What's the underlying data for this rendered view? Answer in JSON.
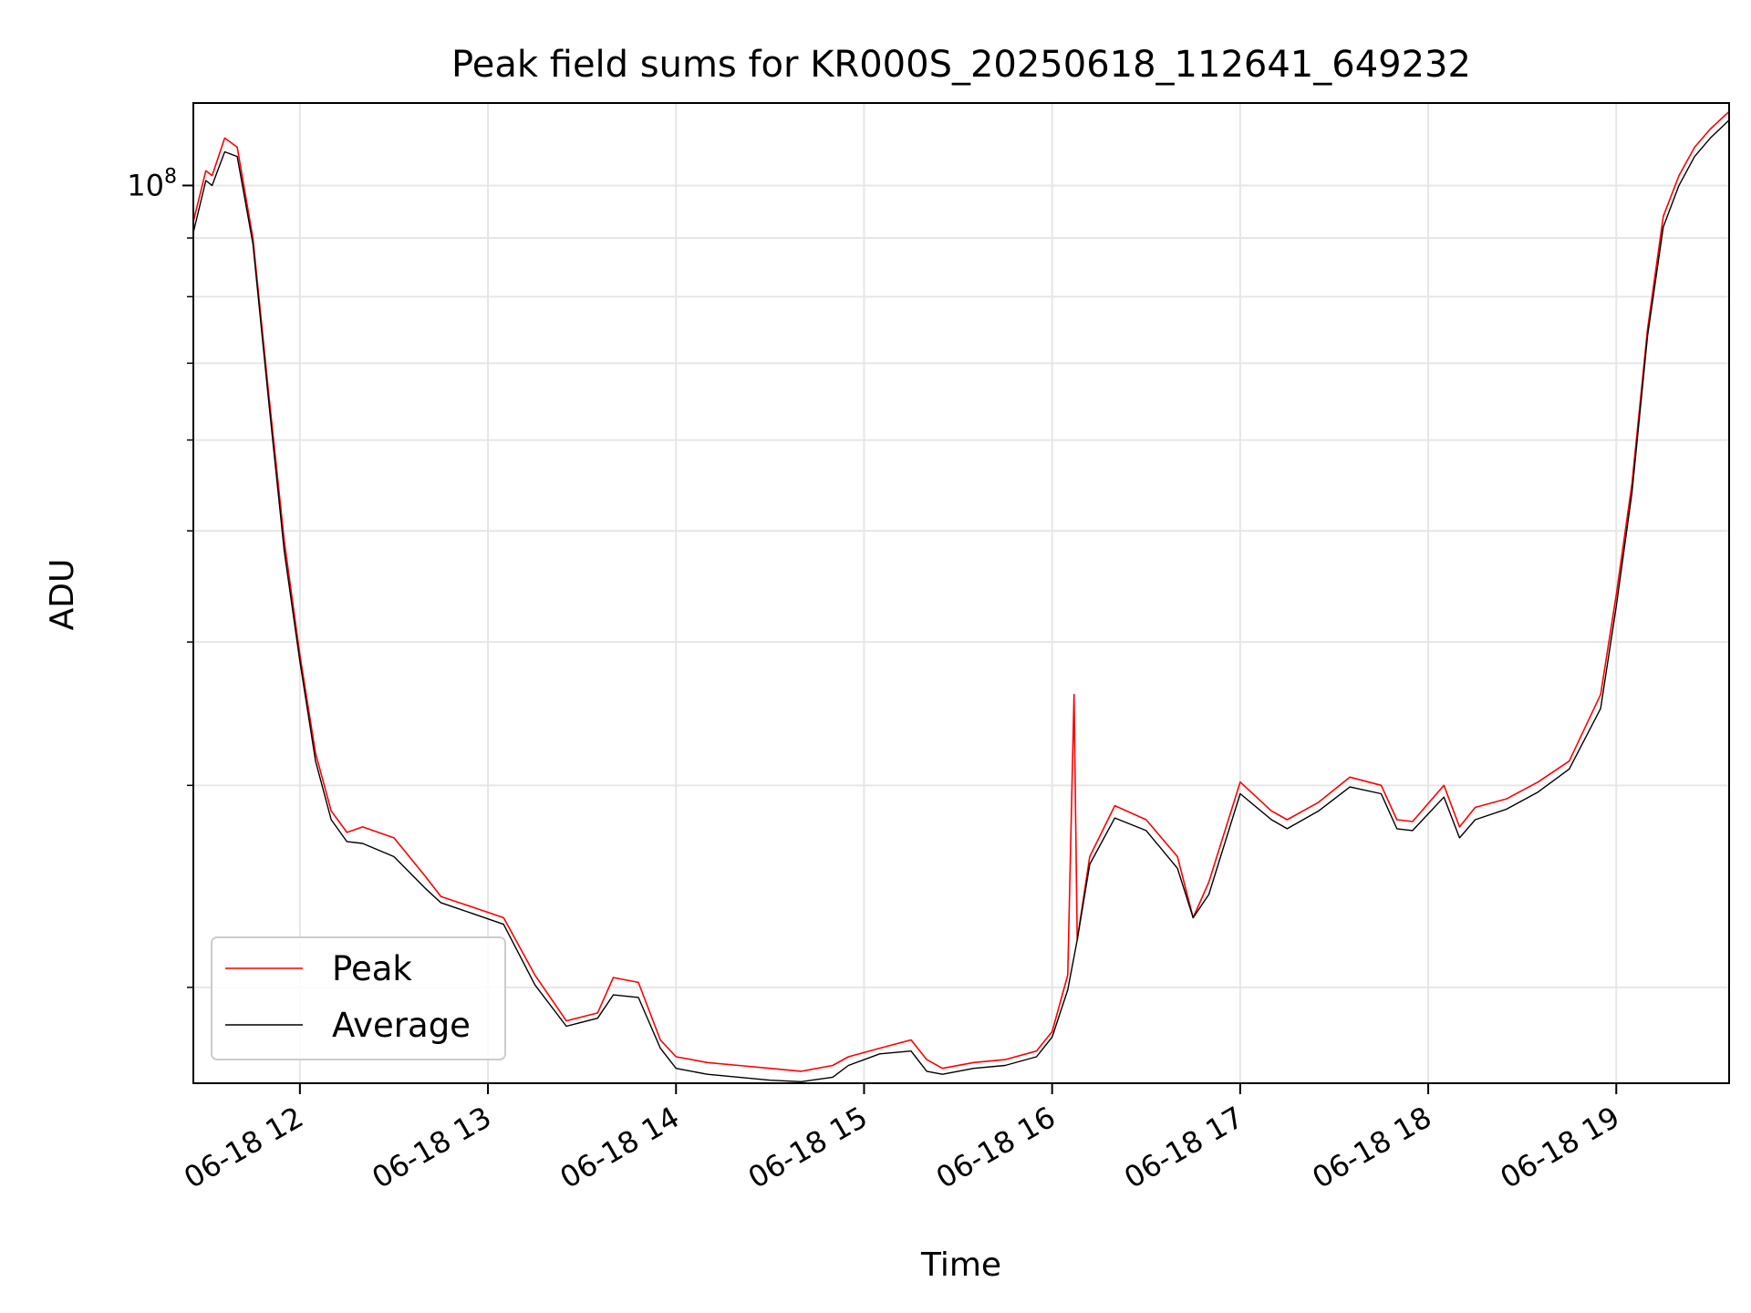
{
  "chart_data": {
    "type": "line",
    "title": "Peak field sums for KR000S_20250618_112641_649232",
    "xlabel": "Time",
    "ylabel": "ADU",
    "yscale": "log",
    "xlim": [
      "06-18 11:26",
      "06-18 19:36"
    ],
    "ylim": [
      16500000,
      118000000
    ],
    "xtick_labels": [
      "06-18 12",
      "06-18 13",
      "06-18 14",
      "06-18 15",
      "06-18 16",
      "06-18 17",
      "06-18 18",
      "06-18 19"
    ],
    "xtick_hours": [
      12,
      13,
      14,
      15,
      16,
      17,
      18,
      19
    ],
    "ytick_major": [
      {
        "value": 100000000,
        "base": "10",
        "exp": "8"
      }
    ],
    "ytick_minor": [
      20000000,
      30000000,
      40000000,
      50000000,
      60000000,
      70000000,
      80000000,
      90000000
    ],
    "grid": true,
    "legend": "lower-left",
    "series": [
      {
        "name": "Peak",
        "color": "#ff0000",
        "x": [
          "11:26",
          "11:30",
          "11:32",
          "11:36",
          "11:40",
          "11:45",
          "11:50",
          "11:55",
          "12:00",
          "12:05",
          "12:10",
          "12:15",
          "12:20",
          "12:30",
          "12:40",
          "12:45",
          "12:55",
          "13:05",
          "13:15",
          "13:25",
          "13:35",
          "13:40",
          "13:48",
          "13:55",
          "14:00",
          "14:10",
          "14:20",
          "14:30",
          "14:40",
          "14:50",
          "14:55",
          "15:05",
          "15:15",
          "15:20",
          "15:25",
          "15:35",
          "15:45",
          "15:55",
          "16:00",
          "16:05",
          "16:07",
          "16:08",
          "16:12",
          "16:20",
          "16:30",
          "16:40",
          "16:45",
          "16:50",
          "17:00",
          "17:10",
          "17:15",
          "17:25",
          "17:35",
          "17:45",
          "17:50",
          "17:55",
          "18:05",
          "18:10",
          "18:15",
          "18:25",
          "18:35",
          "18:45",
          "18:55",
          "19:00",
          "19:05",
          "19:10",
          "19:15",
          "19:20",
          "19:25",
          "19:30",
          "19:36"
        ],
        "y": [
          93000000,
          103000000,
          102000000,
          110000000,
          108000000,
          90000000,
          66000000,
          49000000,
          39000000,
          32000000,
          28500000,
          27300000,
          27600000,
          27000000,
          25000000,
          24000000,
          23500000,
          23000000,
          20500000,
          18700000,
          19000000,
          20400000,
          20200000,
          18000000,
          17400000,
          17200000,
          17100000,
          17000000,
          16900000,
          17100000,
          17400000,
          17700000,
          18000000,
          17300000,
          17000000,
          17200000,
          17300000,
          17600000,
          18300000,
          20500000,
          36000000,
          22000000,
          26000000,
          28800000,
          28000000,
          26000000,
          23000000,
          24700000,
          30200000,
          28500000,
          28000000,
          29000000,
          30500000,
          30000000,
          28000000,
          27900000,
          30000000,
          27600000,
          28700000,
          29200000,
          30200000,
          31500000,
          36000000,
          44000000,
          55000000,
          75000000,
          94000000,
          102000000,
          108000000,
          112000000,
          116000000
        ]
      },
      {
        "name": "Average",
        "color": "#000000",
        "x": [
          "11:26",
          "11:30",
          "11:32",
          "11:36",
          "11:40",
          "11:45",
          "11:50",
          "11:55",
          "12:00",
          "12:05",
          "12:10",
          "12:15",
          "12:20",
          "12:30",
          "12:40",
          "12:45",
          "12:55",
          "13:05",
          "13:15",
          "13:25",
          "13:35",
          "13:40",
          "13:48",
          "13:55",
          "14:00",
          "14:10",
          "14:20",
          "14:30",
          "14:40",
          "14:50",
          "14:55",
          "15:05",
          "15:15",
          "15:20",
          "15:25",
          "15:35",
          "15:45",
          "15:55",
          "16:00",
          "16:05",
          "16:08",
          "16:12",
          "16:20",
          "16:30",
          "16:40",
          "16:45",
          "16:50",
          "17:00",
          "17:10",
          "17:15",
          "17:25",
          "17:35",
          "17:45",
          "17:50",
          "17:55",
          "18:05",
          "18:10",
          "18:15",
          "18:25",
          "18:35",
          "18:45",
          "18:55",
          "19:00",
          "19:05",
          "19:10",
          "19:15",
          "19:20",
          "19:25",
          "19:30",
          "19:36"
        ],
        "y": [
          91000000,
          101000000,
          100000000,
          107000000,
          106000000,
          89000000,
          65000000,
          48000000,
          38500000,
          31500000,
          28000000,
          26800000,
          26700000,
          26000000,
          24400000,
          23700000,
          23200000,
          22700000,
          20100000,
          18500000,
          18800000,
          19700000,
          19600000,
          17700000,
          17000000,
          16800000,
          16700000,
          16600000,
          16550000,
          16700000,
          17100000,
          17500000,
          17600000,
          16900000,
          16800000,
          17000000,
          17100000,
          17400000,
          18100000,
          19900000,
          22000000,
          25600000,
          28100000,
          27400000,
          25400000,
          23000000,
          24100000,
          29500000,
          28000000,
          27500000,
          28500000,
          29900000,
          29500000,
          27500000,
          27400000,
          29300000,
          27000000,
          28000000,
          28600000,
          29600000,
          31000000,
          35000000,
          43000000,
          54000000,
          74000000,
          92000000,
          100000000,
          106000000,
          110000000,
          114000000
        ]
      }
    ]
  }
}
